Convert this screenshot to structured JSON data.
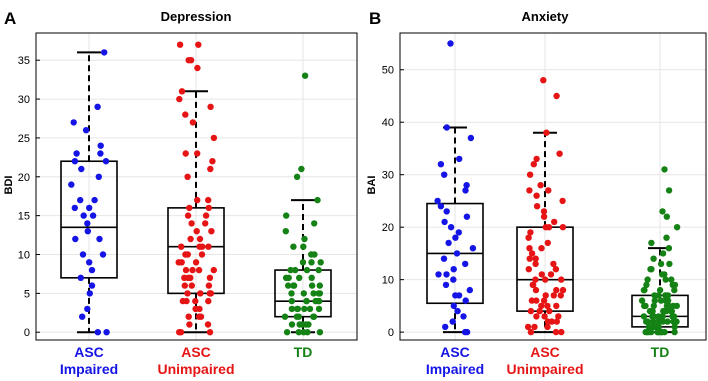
{
  "panel_letters": [
    "A",
    "B"
  ],
  "colors": {
    "asc_impaired": "#1414e6",
    "asc_unimpaired": "#e61414",
    "td": "#148214",
    "grid": "#e6e6e6",
    "box": "#000000"
  },
  "chart_data": [
    {
      "type": "box",
      "title": "Depression",
      "ylabel": "BDI",
      "ylim": [
        -1,
        38.5
      ],
      "yticks": [
        "0",
        "5",
        "10",
        "15",
        "20",
        "25",
        "30",
        "35"
      ],
      "grid": true,
      "categories": [
        {
          "line1": "ASC",
          "line2": "Impaired"
        },
        {
          "line1": "ASC",
          "line2": "Unimpaired"
        },
        {
          "line1": "TD",
          "line2": ""
        }
      ],
      "boxes": [
        {
          "min": 0,
          "q1": 7,
          "median": 13.5,
          "q3": 22,
          "max": 36
        },
        {
          "min": 0,
          "q1": 5,
          "median": 11,
          "q3": 16,
          "max": 31
        },
        {
          "min": 0,
          "q1": 2,
          "median": 4,
          "q3": 8,
          "max": 17
        }
      ],
      "points": [
        [
          36,
          29,
          27,
          26,
          24,
          23,
          23,
          22,
          22,
          21,
          20,
          19,
          17,
          17,
          16,
          16,
          15,
          15,
          14,
          13,
          12,
          12,
          10,
          10,
          9,
          8,
          7,
          6,
          5,
          3,
          2,
          0,
          0
        ],
        [
          37,
          37,
          35,
          35,
          34,
          31,
          30,
          29,
          28,
          27,
          25,
          23,
          23,
          22,
          21,
          20,
          17,
          17,
          16,
          16,
          15,
          15,
          14,
          14,
          13,
          13,
          12,
          12,
          11,
          11,
          11,
          11,
          10,
          10,
          10,
          9,
          9,
          9,
          8,
          8,
          8,
          8,
          7,
          7,
          7,
          7,
          6,
          6,
          6,
          5,
          5,
          5,
          5,
          5,
          4,
          4,
          4,
          4,
          3,
          3,
          3,
          2,
          2,
          2,
          1,
          1,
          0,
          0,
          0
        ],
        [
          33,
          21,
          20,
          17,
          15,
          14,
          13,
          12,
          11,
          11,
          10,
          10,
          9,
          9,
          9,
          8,
          8,
          8,
          8,
          7,
          7,
          7,
          7,
          6,
          6,
          6,
          6,
          6,
          5,
          5,
          5,
          5,
          5,
          4,
          4,
          4,
          4,
          4,
          4,
          3,
          3,
          3,
          3,
          3,
          3,
          2,
          2,
          2,
          2,
          2,
          1,
          1,
          1,
          1,
          1,
          0,
          0,
          0,
          0,
          0
        ]
      ]
    },
    {
      "type": "box",
      "title": "Anxiety",
      "ylabel": "BAI",
      "ylim": [
        -1.5,
        57
      ],
      "yticks": [
        "0",
        "10",
        "20",
        "30",
        "40",
        "50"
      ],
      "grid": true,
      "categories": [
        {
          "line1": "ASC",
          "line2": "Impaired"
        },
        {
          "line1": "ASC",
          "line2": "Unimpaired"
        },
        {
          "line1": "TD",
          "line2": ""
        }
      ],
      "boxes": [
        {
          "min": 0,
          "q1": 5.5,
          "median": 15,
          "q3": 24.5,
          "max": 39
        },
        {
          "min": 0,
          "q1": 4,
          "median": 10,
          "q3": 20,
          "max": 38
        },
        {
          "min": 0,
          "q1": 1,
          "median": 3,
          "q3": 7,
          "max": 16
        }
      ],
      "points": [
        [
          55,
          39,
          37,
          33,
          32,
          30,
          28,
          27,
          25,
          24,
          23,
          22,
          21,
          20,
          19,
          18,
          17,
          16,
          15,
          14,
          13,
          12,
          11,
          11,
          10,
          9,
          8,
          7,
          7,
          6,
          5,
          4,
          3,
          2,
          1,
          0,
          0
        ],
        [
          48,
          45,
          38,
          34,
          33,
          32,
          30,
          28,
          27,
          27,
          26,
          25,
          24,
          23,
          22,
          21,
          20,
          20,
          20,
          19,
          18,
          17,
          16,
          16,
          15,
          14,
          14,
          13,
          13,
          12,
          12,
          11,
          11,
          10,
          10,
          10,
          9,
          9,
          8,
          8,
          8,
          7,
          7,
          7,
          6,
          6,
          6,
          5,
          5,
          5,
          4,
          4,
          4,
          3,
          3,
          3,
          2,
          2,
          2,
          1,
          1,
          1,
          0,
          0,
          0
        ],
        [
          31,
          27,
          23,
          22,
          20,
          18,
          17,
          16,
          15,
          14,
          13,
          13,
          12,
          12,
          11,
          11,
          10,
          10,
          10,
          9,
          9,
          9,
          8,
          8,
          8,
          8,
          7,
          7,
          7,
          7,
          7,
          6,
          6,
          6,
          6,
          6,
          6,
          5,
          5,
          5,
          5,
          5,
          5,
          5,
          4,
          4,
          4,
          4,
          4,
          4,
          4,
          4,
          3,
          3,
          3,
          3,
          3,
          3,
          3,
          3,
          3,
          2,
          2,
          2,
          2,
          2,
          2,
          2,
          2,
          2,
          2,
          1,
          1,
          1,
          1,
          1,
          1,
          1,
          1,
          1,
          1,
          1,
          0,
          0,
          0,
          0,
          0,
          0,
          0,
          0,
          0,
          0,
          0
        ]
      ]
    }
  ]
}
